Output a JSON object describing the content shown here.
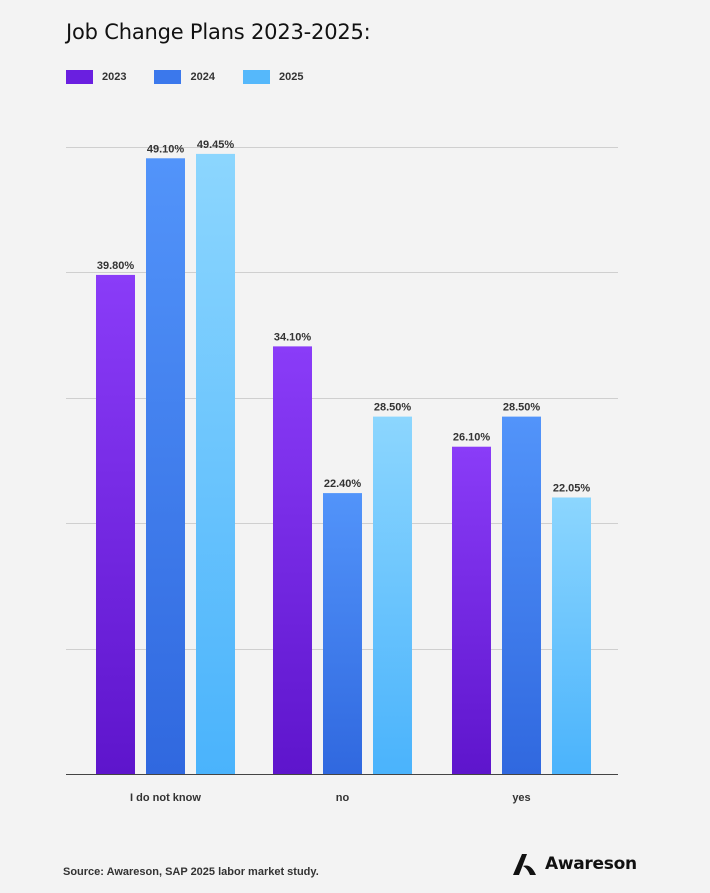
{
  "title": "Job Change Plans 2023-2025:",
  "source": "Source: Awareson, SAP 2025 labor market study.",
  "brand": {
    "name": "Awareson",
    "logo_icon": "awareson-logo-icon"
  },
  "legend": [
    {
      "label": "2023",
      "color": "#6a1fe0"
    },
    {
      "label": "2024",
      "color": "#3b78ec"
    },
    {
      "label": "2025",
      "color": "#55b8fb"
    }
  ],
  "chart_data": {
    "type": "bar",
    "title": "Job Change Plans 2023-2025:",
    "categories": [
      "I do not know",
      "no",
      "yes"
    ],
    "series": [
      {
        "name": "2023",
        "values": [
          39.8,
          34.1,
          26.1
        ],
        "labels": [
          "39.80%",
          "34.10%",
          "26.10%"
        ],
        "color_top": "#8a3cf8",
        "color_bottom": "#5e15cc"
      },
      {
        "name": "2024",
        "values": [
          49.1,
          22.4,
          28.5
        ],
        "labels": [
          "49.10%",
          "22.40%",
          "28.50%"
        ],
        "color_top": "#5294fa",
        "color_bottom": "#3068df"
      },
      {
        "name": "2025",
        "values": [
          49.45,
          28.5,
          22.05
        ],
        "labels": [
          "49.45%",
          "28.50%",
          "22.05%"
        ],
        "color_top": "#8cd6fe",
        "color_bottom": "#4ab3fc"
      }
    ],
    "ylim": [
      0,
      50
    ],
    "y_gridlines": [
      10,
      20,
      30,
      40,
      50
    ],
    "y_tick_labels_shown": false,
    "grid": true,
    "legend_position": "top-left"
  }
}
